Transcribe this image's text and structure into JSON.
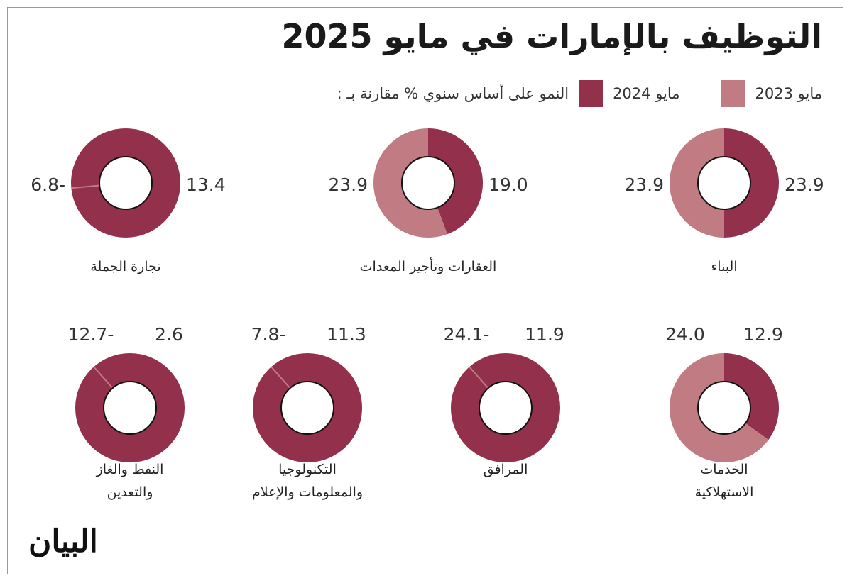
{
  "title": "التوظيف بالإمارات في مايو 2025",
  "legend": {
    "caption": "النمو على أساس سنوي % مقارنة بـ :",
    "items": [
      {
        "label": "مايو 2024",
        "color": "#93304b"
      },
      {
        "label": "مايو 2023",
        "color": "#c07c82"
      }
    ]
  },
  "logo": "البيان",
  "chart_data": {
    "type": "donut",
    "unit": "%",
    "series_names": [
      "مايو 2024",
      "مايو 2023"
    ],
    "categories": [
      {
        "name": [
          "البناء"
        ],
        "may_2024": 23.9,
        "may_2023": 23.9
      },
      {
        "name": [
          "العقارات وتأجير المعدات"
        ],
        "may_2024": 19.0,
        "may_2023": 23.9
      },
      {
        "name": [
          "تجارة الجملة"
        ],
        "may_2024": 13.4,
        "may_2023": -6.8
      },
      {
        "name": [
          "الخدمات",
          "الاستهلاكية"
        ],
        "may_2024": 12.9,
        "may_2023": 24.0
      },
      {
        "name": [
          "المرافق"
        ],
        "may_2024": 11.9,
        "may_2023": -24.1
      },
      {
        "name": [
          "التكنولوجيا",
          "والمعلومات والإعلام"
        ],
        "may_2024": 11.3,
        "may_2023": -7.8
      },
      {
        "name": [
          "النفط والغاز",
          "والتعدين"
        ],
        "may_2024": 2.6,
        "may_2023": -12.7
      }
    ]
  }
}
